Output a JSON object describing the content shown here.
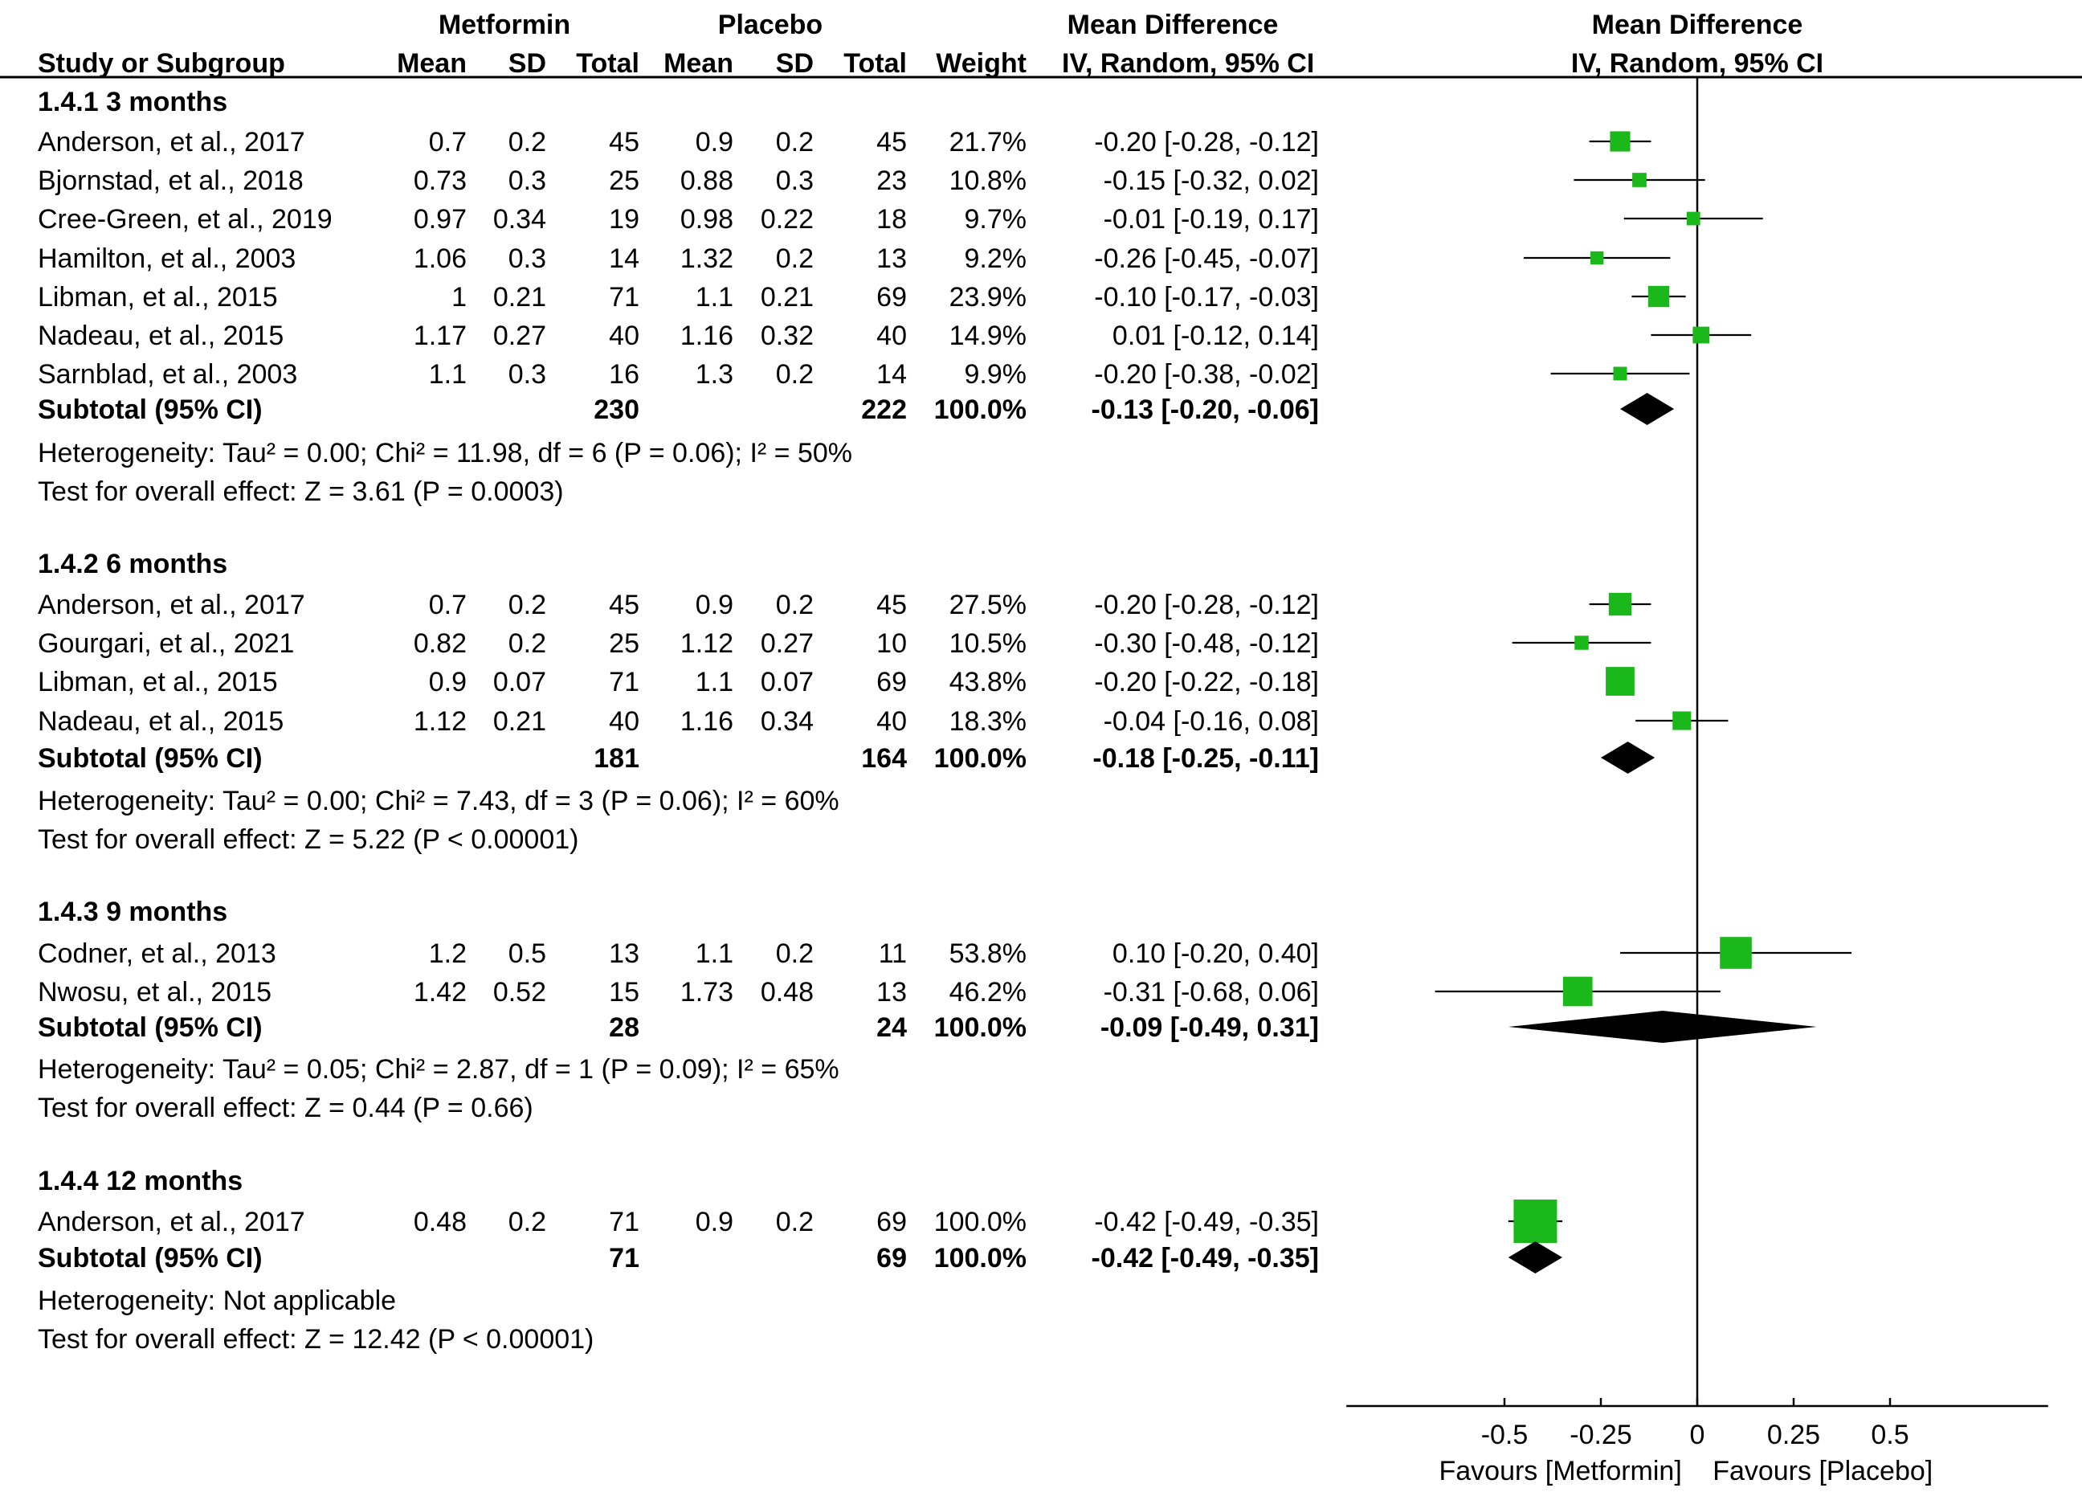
{
  "headers": {
    "group_metformin": "Metformin",
    "group_placebo": "Placebo",
    "md_header": "Mean Difference",
    "md_sub": "IV, Random, 95% CI",
    "plot_header": "Mean Difference",
    "plot_sub": "IV, Random, 95% CI",
    "study": "Study or Subgroup",
    "mean": "Mean",
    "sd": "SD",
    "total": "Total",
    "weight": "Weight"
  },
  "groups": [
    {
      "title": "1.4.1 3 months",
      "studies": [
        {
          "name": "Anderson, et al., 2017",
          "m_mean": "0.7",
          "m_sd": "0.2",
          "m_total": "45",
          "p_mean": "0.9",
          "p_sd": "0.2",
          "p_total": "45",
          "weight": "21.7%",
          "ci": "-0.20 [-0.28, -0.12]",
          "est": -0.2,
          "lo": -0.28,
          "hi": -0.12,
          "w": 21.7
        },
        {
          "name": "Bjornstad, et al., 2018",
          "m_mean": "0.73",
          "m_sd": "0.3",
          "m_total": "25",
          "p_mean": "0.88",
          "p_sd": "0.3",
          "p_total": "23",
          "weight": "10.8%",
          "ci": "-0.15 [-0.32, 0.02]",
          "est": -0.15,
          "lo": -0.32,
          "hi": 0.02,
          "w": 10.8
        },
        {
          "name": "Cree-Green, et al., 2019",
          "m_mean": "0.97",
          "m_sd": "0.34",
          "m_total": "19",
          "p_mean": "0.98",
          "p_sd": "0.22",
          "p_total": "18",
          "weight": "9.7%",
          "ci": "-0.01 [-0.19, 0.17]",
          "est": -0.01,
          "lo": -0.19,
          "hi": 0.17,
          "w": 9.7
        },
        {
          "name": "Hamilton, et al., 2003",
          "m_mean": "1.06",
          "m_sd": "0.3",
          "m_total": "14",
          "p_mean": "1.32",
          "p_sd": "0.2",
          "p_total": "13",
          "weight": "9.2%",
          "ci": "-0.26 [-0.45, -0.07]",
          "est": -0.26,
          "lo": -0.45,
          "hi": -0.07,
          "w": 9.2
        },
        {
          "name": "Libman, et al., 2015",
          "m_mean": "1",
          "m_sd": "0.21",
          "m_total": "71",
          "p_mean": "1.1",
          "p_sd": "0.21",
          "p_total": "69",
          "weight": "23.9%",
          "ci": "-0.10 [-0.17, -0.03]",
          "est": -0.1,
          "lo": -0.17,
          "hi": -0.03,
          "w": 23.9
        },
        {
          "name": "Nadeau, et al., 2015",
          "m_mean": "1.17",
          "m_sd": "0.27",
          "m_total": "40",
          "p_mean": "1.16",
          "p_sd": "0.32",
          "p_total": "40",
          "weight": "14.9%",
          "ci": "0.01 [-0.12, 0.14]",
          "est": 0.01,
          "lo": -0.12,
          "hi": 0.14,
          "w": 14.9
        },
        {
          "name": "Sarnblad, et al., 2003",
          "m_mean": "1.1",
          "m_sd": "0.3",
          "m_total": "16",
          "p_mean": "1.3",
          "p_sd": "0.2",
          "p_total": "14",
          "weight": "9.9%",
          "ci": "-0.20 [-0.38, -0.02]",
          "est": -0.2,
          "lo": -0.38,
          "hi": -0.02,
          "w": 9.9
        }
      ],
      "subtotal": {
        "label": "Subtotal (95% CI)",
        "m_total": "230",
        "p_total": "222",
        "weight": "100.0%",
        "ci": "-0.13 [-0.20, -0.06]",
        "est": -0.13,
        "lo": -0.2,
        "hi": -0.06
      },
      "heterogeneity": "Heterogeneity: Tau² = 0.00; Chi² = 11.98, df = 6 (P = 0.06); I² = 50%",
      "overall": "Test for overall effect: Z = 3.61 (P = 0.0003)"
    },
    {
      "title": "1.4.2 6 months",
      "studies": [
        {
          "name": "Anderson, et al., 2017",
          "m_mean": "0.7",
          "m_sd": "0.2",
          "m_total": "45",
          "p_mean": "0.9",
          "p_sd": "0.2",
          "p_total": "45",
          "weight": "27.5%",
          "ci": "-0.20 [-0.28, -0.12]",
          "est": -0.2,
          "lo": -0.28,
          "hi": -0.12,
          "w": 27.5
        },
        {
          "name": "Gourgari, et al., 2021",
          "m_mean": "0.82",
          "m_sd": "0.2",
          "m_total": "25",
          "p_mean": "1.12",
          "p_sd": "0.27",
          "p_total": "10",
          "weight": "10.5%",
          "ci": "-0.30 [-0.48, -0.12]",
          "est": -0.3,
          "lo": -0.48,
          "hi": -0.12,
          "w": 10.5
        },
        {
          "name": "Libman, et al., 2015",
          "m_mean": "0.9",
          "m_sd": "0.07",
          "m_total": "71",
          "p_mean": "1.1",
          "p_sd": "0.07",
          "p_total": "69",
          "weight": "43.8%",
          "ci": "-0.20 [-0.22, -0.18]",
          "est": -0.2,
          "lo": -0.22,
          "hi": -0.18,
          "w": 43.8
        },
        {
          "name": "Nadeau, et al., 2015",
          "m_mean": "1.12",
          "m_sd": "0.21",
          "m_total": "40",
          "p_mean": "1.16",
          "p_sd": "0.34",
          "p_total": "40",
          "weight": "18.3%",
          "ci": "-0.04 [-0.16, 0.08]",
          "est": -0.04,
          "lo": -0.16,
          "hi": 0.08,
          "w": 18.3
        }
      ],
      "subtotal": {
        "label": "Subtotal (95% CI)",
        "m_total": "181",
        "p_total": "164",
        "weight": "100.0%",
        "ci": "-0.18 [-0.25, -0.11]",
        "est": -0.18,
        "lo": -0.25,
        "hi": -0.11
      },
      "heterogeneity": "Heterogeneity: Tau² = 0.00; Chi² = 7.43, df = 3 (P = 0.06); I² = 60%",
      "overall": "Test for overall effect: Z = 5.22 (P < 0.00001)"
    },
    {
      "title": "1.4.3 9 months",
      "studies": [
        {
          "name": "Codner, et al., 2013",
          "m_mean": "1.2",
          "m_sd": "0.5",
          "m_total": "13",
          "p_mean": "1.1",
          "p_sd": "0.2",
          "p_total": "11",
          "weight": "53.8%",
          "ci": "0.10 [-0.20, 0.40]",
          "est": 0.1,
          "lo": -0.2,
          "hi": 0.4,
          "w": 53.8
        },
        {
          "name": "Nwosu, et al., 2015",
          "m_mean": "1.42",
          "m_sd": "0.52",
          "m_total": "15",
          "p_mean": "1.73",
          "p_sd": "0.48",
          "p_total": "13",
          "weight": "46.2%",
          "ci": "-0.31 [-0.68, 0.06]",
          "est": -0.31,
          "lo": -0.68,
          "hi": 0.06,
          "w": 46.2
        }
      ],
      "subtotal": {
        "label": "Subtotal (95% CI)",
        "m_total": "28",
        "p_total": "24",
        "weight": "100.0%",
        "ci": "-0.09 [-0.49, 0.31]",
        "est": -0.09,
        "lo": -0.49,
        "hi": 0.31
      },
      "heterogeneity": "Heterogeneity: Tau² = 0.05; Chi² = 2.87, df = 1 (P = 0.09); I² = 65%",
      "overall": "Test for overall effect: Z = 0.44 (P = 0.66)"
    },
    {
      "title": "1.4.4 12 months",
      "studies": [
        {
          "name": "Anderson, et al., 2017",
          "m_mean": "0.48",
          "m_sd": "0.2",
          "m_total": "71",
          "p_mean": "0.9",
          "p_sd": "0.2",
          "p_total": "69",
          "weight": "100.0%",
          "ci": "-0.42 [-0.49, -0.35]",
          "est": -0.42,
          "lo": -0.49,
          "hi": -0.35,
          "w": 100.0
        }
      ],
      "subtotal": {
        "label": "Subtotal (95% CI)",
        "m_total": "71",
        "p_total": "69",
        "weight": "100.0%",
        "ci": "-0.42 [-0.49, -0.35]",
        "est": -0.42,
        "lo": -0.49,
        "hi": -0.35
      },
      "heterogeneity": "Heterogeneity: Not applicable",
      "overall": "Test for overall effect: Z = 12.42 (P < 0.00001)"
    }
  ],
  "axis": {
    "ticks": [
      -0.5,
      -0.25,
      0,
      0.25,
      0.5
    ],
    "tick_labels": [
      "-0.5",
      "-0.25",
      "0",
      "0.25",
      "0.5"
    ],
    "xlim": [
      -0.91,
      0.91
    ],
    "favours_left": "Favours [Metformin]",
    "favours_right": "Favours [Placebo]"
  },
  "colors": {
    "box": "#1ab81a",
    "diamond": "#000000",
    "line": "#000000",
    "text": "#000000"
  },
  "chart_data": {
    "type": "forest",
    "title": "Mean Difference IV, Random, 95% CI",
    "xlabel_left": "Favours [Metformin]",
    "xlabel_right": "Favours [Placebo]",
    "xlim": [
      -0.91,
      0.91
    ],
    "xticks": [
      -0.5,
      -0.25,
      0,
      0.25,
      0.5
    ],
    "series": [
      {
        "name": "1.4.1 3 months",
        "estimates": [
          -0.2,
          -0.15,
          -0.01,
          -0.26,
          -0.1,
          0.01,
          -0.2
        ],
        "pooled": -0.13
      },
      {
        "name": "1.4.2 6 months",
        "estimates": [
          -0.2,
          -0.3,
          -0.2,
          -0.04
        ],
        "pooled": -0.18
      },
      {
        "name": "1.4.3 9 months",
        "estimates": [
          0.1,
          -0.31
        ],
        "pooled": -0.09
      },
      {
        "name": "1.4.4 12 months",
        "estimates": [
          -0.42
        ],
        "pooled": -0.42
      }
    ]
  }
}
